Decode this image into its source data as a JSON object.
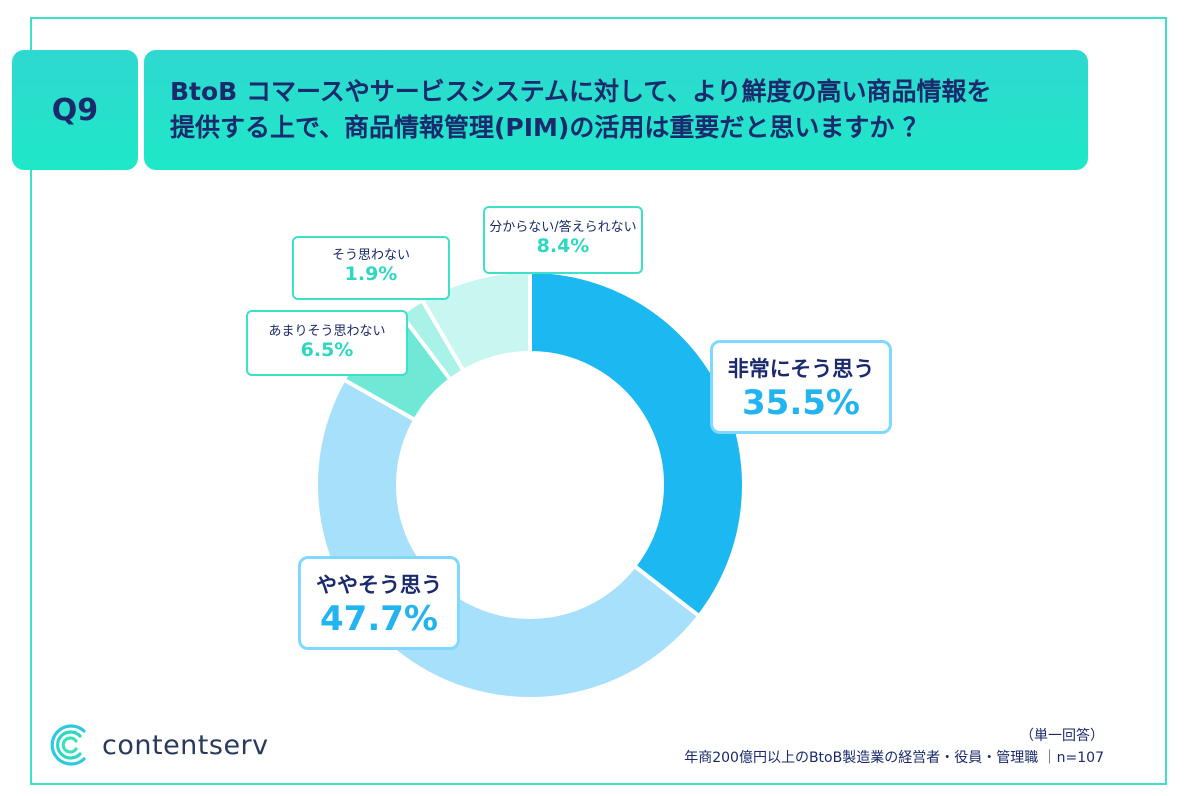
{
  "header": {
    "question_no": "Q9",
    "question_line1": "BtoB コマースやサービスシステムに対して、より鮮度の高い商品情報を",
    "question_line2": "提供する上で、商品情報管理(PIM)の活用は重要だと思いますか ？"
  },
  "chart_data": {
    "type": "pie",
    "donut": true,
    "unit": "%",
    "slices": [
      {
        "label": "非常にそう思う",
        "value": 35.5,
        "value_text": "35.5%",
        "color": "#1cb8f2"
      },
      {
        "label": "ややそう思う",
        "value": 47.7,
        "value_text": "47.7%",
        "color": "#a6e0fa"
      },
      {
        "label": "あまりそう思わない",
        "value": 6.5,
        "value_text": "6.5%",
        "color": "#6fe8d6"
      },
      {
        "label": "そう思わない",
        "value": 1.9,
        "value_text": "1.9%",
        "color": "#a8f2e8"
      },
      {
        "label": "分からない/答えられない",
        "value": 8.4,
        "value_text": "8.4%",
        "color": "#c8f6f0"
      }
    ]
  },
  "footer": {
    "brand": "contentserv",
    "answer_type": "（単一回答）",
    "sample_note": "年商200億円以上のBtoB製造業の経営者・役員・管理職 ｜n=107"
  },
  "colors": {
    "frame": "#3fe0c8",
    "header_bg": "#2fd8d0",
    "title_text": "#1a2a6c"
  }
}
